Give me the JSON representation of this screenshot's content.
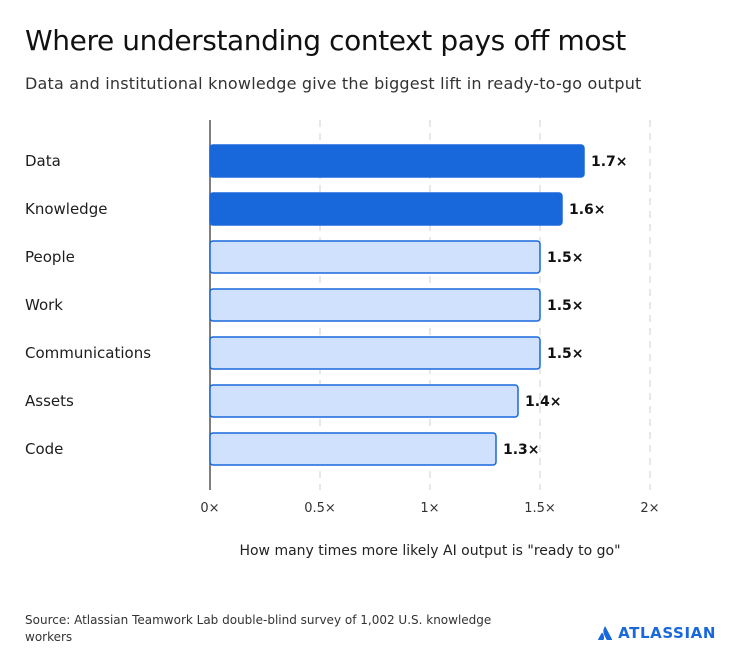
{
  "title": "Where understanding context pays off most",
  "subtitle": "Data and institutional knowledge give the biggest lift in ready-to-go output",
  "source": "Source: Atlassian Teamwork Lab double-blind survey of 1,002 U.S. knowledge workers",
  "brand": {
    "name": "ATLASSIAN",
    "icon": "atlassian-logo-icon",
    "color": "#1868db"
  },
  "colors": {
    "highlight_fill": "#1868db",
    "normal_fill": "#cfe1fd",
    "normal_stroke": "#1868db",
    "grid": "#d9d9d9",
    "axis": "#555555"
  },
  "chart_data": {
    "type": "bar",
    "orientation": "horizontal",
    "categories": [
      "Data",
      "Knowledge",
      "People",
      "Work",
      "Communications",
      "Assets",
      "Code"
    ],
    "values": [
      1.7,
      1.6,
      1.5,
      1.5,
      1.5,
      1.4,
      1.3
    ],
    "value_labels": [
      "1.7×",
      "1.6×",
      "1.5×",
      "1.5×",
      "1.5×",
      "1.4×",
      "1.3×"
    ],
    "highlighted": [
      true,
      true,
      false,
      false,
      false,
      false,
      false
    ],
    "xlabel": "How many times more likely AI output is \"ready to go\"",
    "xlim": [
      0,
      2
    ],
    "xticks": [
      0,
      0.5,
      1,
      1.5,
      2
    ],
    "xtick_labels": [
      "0×",
      "0.5×",
      "1×",
      "1.5×",
      "2×"
    ],
    "grid": "vertical dashed"
  }
}
